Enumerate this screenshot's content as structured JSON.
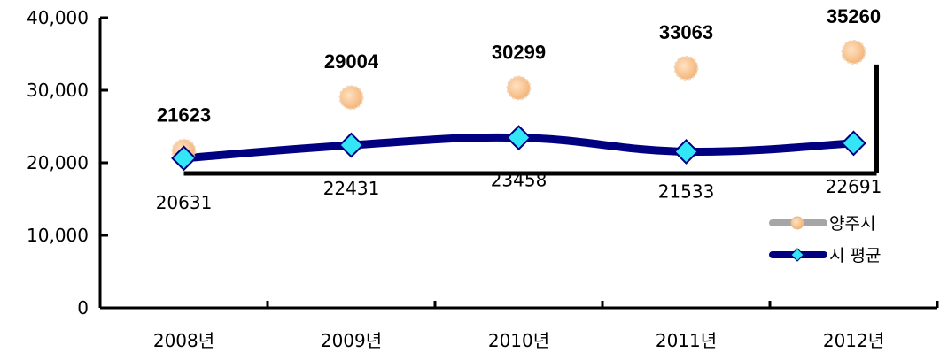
{
  "chart_data": {
    "type": "line",
    "categories": [
      "2008년",
      "2009년",
      "2010년",
      "2011년",
      "2012년"
    ],
    "ylim": [
      0,
      40000
    ],
    "y_ticks": [
      "0",
      "10,000",
      "20,000",
      "30,000",
      "40,000"
    ],
    "grid": false,
    "legend_position": "right",
    "series": [
      {
        "name": "양주시",
        "values": [
          21623,
          29004,
          30299,
          33063,
          35260
        ],
        "labels": [
          "21623",
          "29004",
          "30299",
          "33063",
          "35260"
        ],
        "style": "markers-only",
        "color": "#f7c08c",
        "line_color": "#a6a6a6"
      },
      {
        "name": "시 평균",
        "values": [
          20631,
          22431,
          23458,
          21533,
          22691
        ],
        "labels": [
          "20631",
          "22431",
          "23458",
          "21533",
          "22691"
        ],
        "style": "line-with-markers",
        "color": "#000080",
        "marker_color": "#33e6f5"
      }
    ]
  }
}
